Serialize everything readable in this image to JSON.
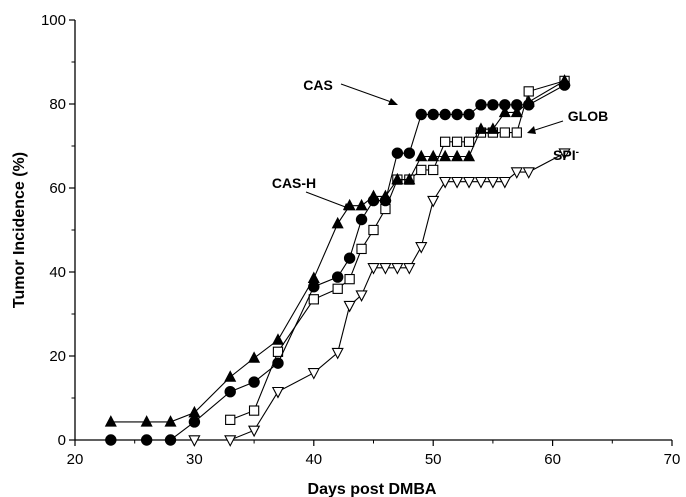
{
  "chart_data": {
    "type": "line",
    "title": "",
    "xlabel": "Days post DMBA",
    "ylabel": "Tumor Incidence (%)",
    "xlim": [
      20,
      70
    ],
    "ylim": [
      0,
      100
    ],
    "xticks": [
      "20",
      "30",
      "40",
      "50",
      "60",
      "70"
    ],
    "yticks": [
      "0",
      "20",
      "40",
      "60",
      "80",
      "100"
    ],
    "grid": false,
    "legend": "none",
    "series": [
      {
        "name": "CAS-H",
        "marker": "triangle-up-filled",
        "x": [
          23,
          26,
          28,
          30,
          33,
          35,
          37,
          40,
          42,
          43,
          44,
          45,
          46,
          47,
          48,
          49,
          50,
          51,
          52,
          53,
          54,
          55,
          56,
          57,
          58,
          61
        ],
        "y": [
          4.3,
          4.3,
          4.3,
          6.5,
          15,
          19.5,
          23.8,
          38.5,
          51.5,
          55.8,
          55.8,
          58,
          58,
          62,
          62,
          67.5,
          67.5,
          67.5,
          67.5,
          67.5,
          74,
          74,
          78,
          78,
          80.5,
          85.5
        ]
      },
      {
        "name": "CAS",
        "marker": "circle-filled",
        "x": [
          23,
          26,
          28,
          30,
          33,
          35,
          37,
          40,
          42,
          43,
          44,
          45,
          46,
          47,
          48,
          49,
          50,
          51,
          52,
          53,
          54,
          55,
          56,
          57,
          58,
          61
        ],
        "y": [
          0,
          0,
          0,
          4.3,
          11.5,
          13.8,
          18.3,
          36.5,
          38.8,
          43.3,
          52.5,
          57,
          57,
          68.3,
          68.3,
          77.5,
          77.5,
          77.5,
          77.5,
          77.5,
          79.8,
          79.8,
          79.8,
          79.8,
          79.8,
          84.5
        ]
      },
      {
        "name": "GLOB",
        "marker": "square-open",
        "x": [
          33,
          35,
          37,
          40,
          42,
          43,
          44,
          45,
          46,
          47,
          48,
          49,
          50,
          51,
          52,
          53,
          54,
          55,
          56,
          57,
          58,
          61
        ],
        "y": [
          4.8,
          7,
          21,
          33.5,
          36,
          38.3,
          45.5,
          50,
          55,
          62,
          62,
          64.3,
          64.3,
          71,
          71,
          71,
          73.2,
          73.2,
          73.2,
          73.2,
          83,
          85.5
        ]
      },
      {
        "name": "SPI⁻",
        "marker": "triangle-down-open",
        "x": [
          30,
          33,
          35,
          37,
          40,
          42,
          43,
          44,
          45,
          46,
          47,
          48,
          49,
          50,
          51,
          52,
          53,
          54,
          55,
          56,
          57,
          58,
          61
        ],
        "y": [
          0,
          0,
          2.3,
          11.5,
          16,
          20.8,
          32,
          34.5,
          41,
          41,
          41,
          41,
          46,
          57,
          61.5,
          61.5,
          61.5,
          61.5,
          61.5,
          61.5,
          63.8,
          63.8,
          68.3
        ]
      }
    ],
    "annotations": [
      {
        "text": "CAS",
        "series": "CAS",
        "point": [
          49,
          77.5
        ]
      },
      {
        "text": "GLOB",
        "series": "GLOB",
        "point": [
          57,
          74.5
        ]
      },
      {
        "text": "CAS-H",
        "series": "CAS-H",
        "point": [
          42.5,
          55.5
        ]
      },
      {
        "text": "SPI",
        "superscript": "-",
        "series": "SPI⁻",
        "point": [
          58,
          66.5
        ]
      }
    ]
  }
}
